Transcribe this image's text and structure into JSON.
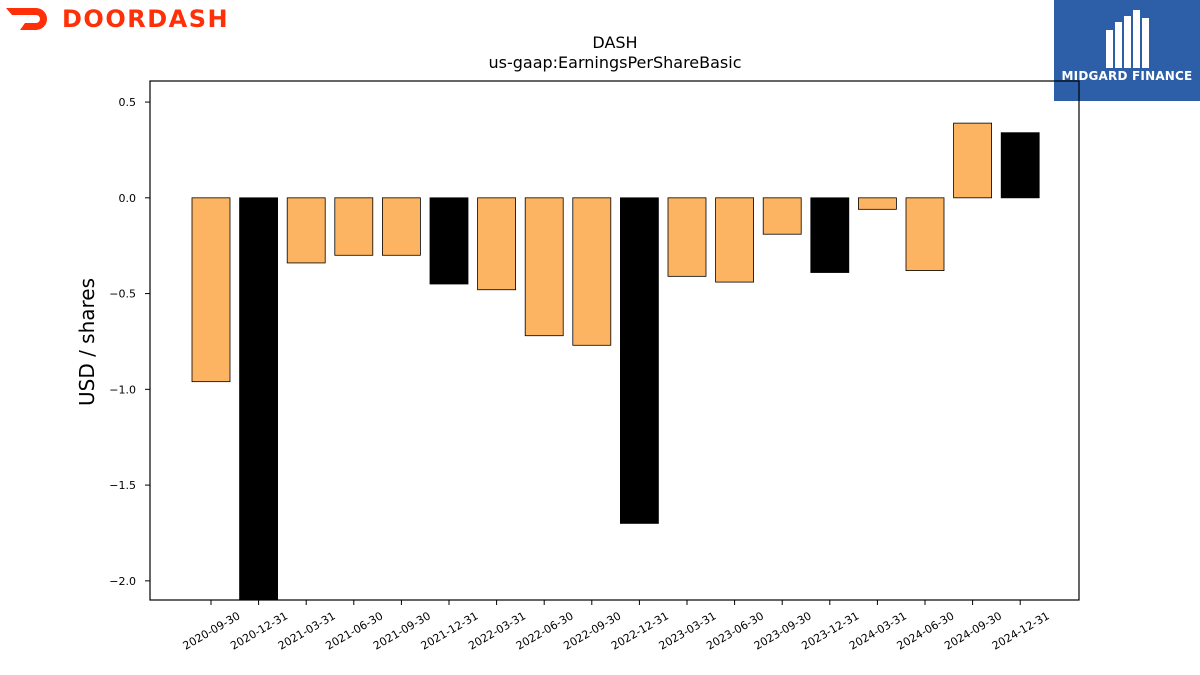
{
  "brand": {
    "name": "DOORDASH",
    "color": "#ff3008",
    "icon": "doordash-dash-icon"
  },
  "badge": {
    "text": "MIDGARD FINANCE",
    "color": "#2d5fa8",
    "icon": "midgard-m-icon"
  },
  "chart_data": {
    "type": "bar",
    "title": "DASH",
    "subtitle": "us-gaap:EarningsPerShareBasic",
    "xlabel": "",
    "ylabel": "USD / shares",
    "ylim": [
      -2.1,
      0.61
    ],
    "yticks": [
      0.5,
      0.0,
      -0.5,
      -1.0,
      -1.5,
      -2.0
    ],
    "ytick_labels": [
      "0.5",
      "0.0",
      "−0.5",
      "−1.0",
      "−1.5",
      "−2.0"
    ],
    "grid": false,
    "categories": [
      "2020-09-30",
      "2020-12-31",
      "2021-03-31",
      "2021-06-30",
      "2021-09-30",
      "2021-12-31",
      "2022-03-31",
      "2022-06-30",
      "2022-09-30",
      "2022-12-31",
      "2023-03-31",
      "2023-06-30",
      "2023-09-30",
      "2023-12-31",
      "2024-03-31",
      "2024-06-30",
      "2024-09-30",
      "2024-12-31"
    ],
    "values": [
      -0.96,
      -2.1,
      -0.34,
      -0.3,
      -0.3,
      -0.45,
      -0.48,
      -0.72,
      -0.77,
      -1.7,
      -0.41,
      -0.44,
      -0.19,
      -0.39,
      -0.06,
      -0.38,
      0.39,
      0.34
    ],
    "colors": {
      "quarter": "#fdb462",
      "year_end": "#000000"
    },
    "year_end_categories": [
      "2020-12-31",
      "2021-12-31",
      "2022-12-31",
      "2023-12-31",
      "2024-12-31"
    ]
  }
}
